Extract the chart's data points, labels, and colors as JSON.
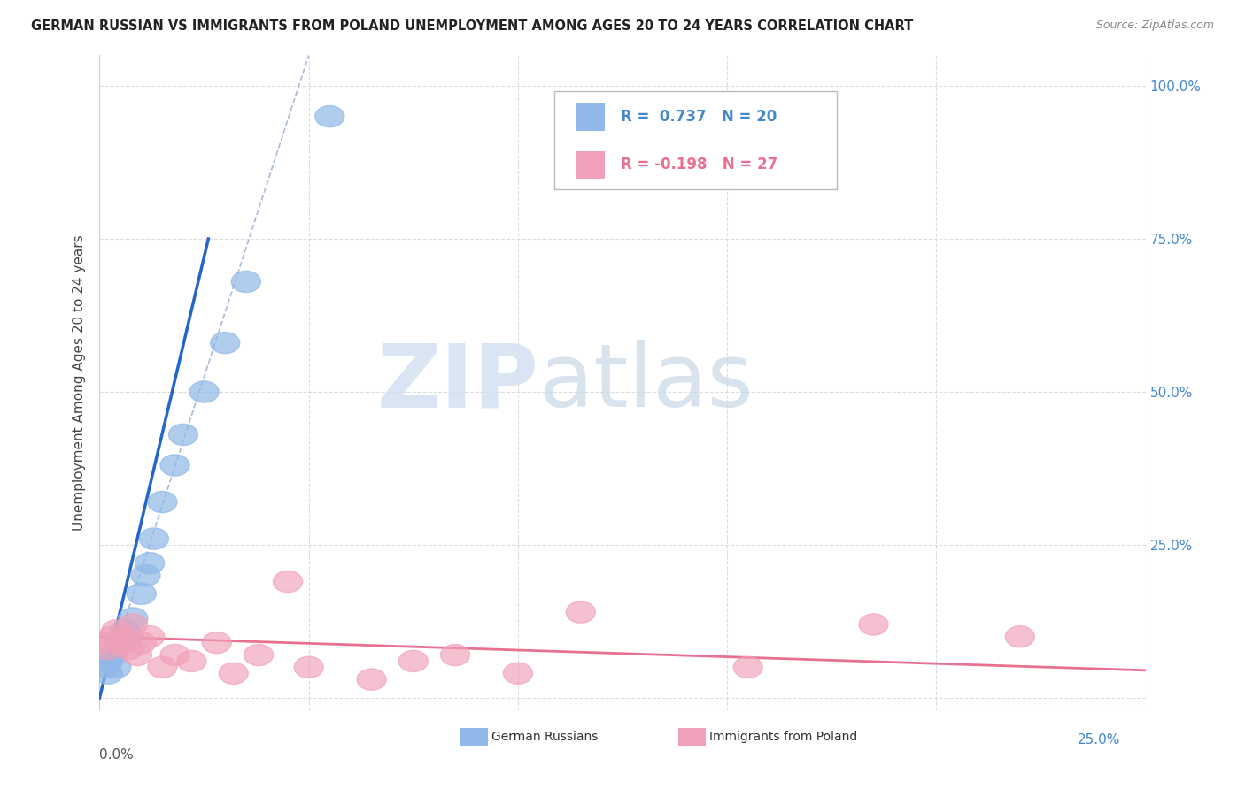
{
  "title": "GERMAN RUSSIAN VS IMMIGRANTS FROM POLAND UNEMPLOYMENT AMONG AGES 20 TO 24 YEARS CORRELATION CHART",
  "source": "Source: ZipAtlas.com",
  "ylabel": "Unemployment Among Ages 20 to 24 years",
  "ytick_vals": [
    0.0,
    0.25,
    0.5,
    0.75,
    1.0
  ],
  "ytick_labels_right": [
    "",
    "25.0%",
    "50.0%",
    "75.0%",
    "100.0%"
  ],
  "xtick_vals": [
    0.0,
    0.05,
    0.1,
    0.15,
    0.2,
    0.25
  ],
  "xlim": [
    0.0,
    0.25
  ],
  "ylim": [
    -0.02,
    1.05
  ],
  "legend1_label": "R =  0.737   N = 20",
  "legend2_label": "R = -0.198   N = 27",
  "bottom_label1": "German Russians",
  "bottom_label2": "Immigrants from Poland",
  "blue_color": "#90b8e8",
  "pink_color": "#f0a0b8",
  "blue_line_color": "#2266cc",
  "pink_line_color": "#e87090",
  "ref_line_color": "#aabbd8",
  "watermark_zip_color": "#d0dff0",
  "watermark_atlas_color": "#c8d8e8",
  "blue_x": [
    0.001,
    0.002,
    0.002,
    0.003,
    0.004,
    0.005,
    0.006,
    0.007,
    0.008,
    0.01,
    0.011,
    0.012,
    0.013,
    0.015,
    0.018,
    0.02,
    0.025,
    0.03,
    0.035,
    0.055
  ],
  "blue_y": [
    0.05,
    0.04,
    0.06,
    0.07,
    0.05,
    0.09,
    0.11,
    0.1,
    0.13,
    0.17,
    0.2,
    0.22,
    0.26,
    0.32,
    0.38,
    0.43,
    0.5,
    0.58,
    0.68,
    0.95
  ],
  "pink_x": [
    0.001,
    0.002,
    0.003,
    0.004,
    0.005,
    0.006,
    0.007,
    0.008,
    0.009,
    0.01,
    0.012,
    0.015,
    0.018,
    0.022,
    0.028,
    0.032,
    0.038,
    0.045,
    0.05,
    0.065,
    0.075,
    0.085,
    0.1,
    0.115,
    0.155,
    0.185,
    0.22
  ],
  "pink_y": [
    0.09,
    0.08,
    0.1,
    0.11,
    0.09,
    0.1,
    0.08,
    0.12,
    0.07,
    0.09,
    0.1,
    0.05,
    0.07,
    0.06,
    0.09,
    0.04,
    0.07,
    0.19,
    0.05,
    0.03,
    0.06,
    0.07,
    0.04,
    0.14,
    0.05,
    0.12,
    0.1
  ],
  "blue_trend_x": [
    0.0,
    0.026
  ],
  "blue_trend_y": [
    0.0,
    0.75
  ],
  "pink_trend_x": [
    0.0,
    0.25
  ],
  "pink_trend_y": [
    0.1,
    0.045
  ],
  "ref_line_x": [
    0.0,
    0.05
  ],
  "ref_line_y": [
    0.0,
    1.05
  ]
}
